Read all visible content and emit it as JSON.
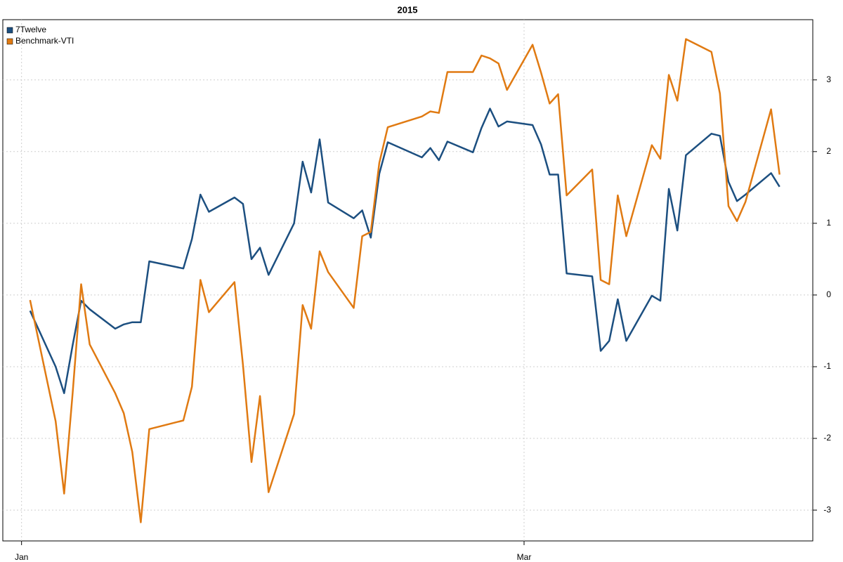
{
  "chart_data": {
    "type": "line",
    "title": "2015",
    "x": [
      1,
      4,
      5,
      6,
      7,
      8,
      11,
      12,
      13,
      14,
      15,
      19,
      20,
      21,
      22,
      25,
      26,
      27,
      28,
      29,
      32,
      33,
      34,
      35,
      36,
      39,
      40,
      41,
      42,
      43,
      47,
      48,
      49,
      50,
      53,
      54,
      55,
      56,
      57,
      60,
      61,
      62,
      63,
      64,
      67,
      68,
      69,
      70,
      71,
      74,
      75,
      76,
      77,
      78,
      81,
      82,
      83,
      84,
      85,
      88,
      89
    ],
    "series": [
      {
        "name": "7Twelve",
        "color": "#1c4f80",
        "values": [
          -0.22,
          -1.0,
          -1.37,
          -0.7,
          -0.08,
          -0.2,
          -0.47,
          -0.41,
          -0.38,
          -0.38,
          0.47,
          0.37,
          0.78,
          1.4,
          1.16,
          1.36,
          1.27,
          0.5,
          0.66,
          0.28,
          1.0,
          1.86,
          1.43,
          2.17,
          1.29,
          1.07,
          1.18,
          0.8,
          1.69,
          2.13,
          1.92,
          2.05,
          1.88,
          2.14,
          1.99,
          2.33,
          2.6,
          2.35,
          2.42,
          2.37,
          2.1,
          1.68,
          1.68,
          0.3,
          0.26,
          -0.78,
          -0.64,
          -0.06,
          -0.64,
          -0.01,
          -0.08,
          1.48,
          0.9,
          1.95,
          2.25,
          2.22,
          1.58,
          1.31,
          1.4,
          1.7,
          1.51
        ]
      },
      {
        "name": "Benchmark-VTI",
        "color": "#e07a12",
        "values": [
          -0.07,
          -1.76,
          -2.77,
          -1.37,
          0.15,
          -0.69,
          -1.37,
          -1.65,
          -2.19,
          -3.17,
          -1.87,
          -1.75,
          -1.28,
          0.21,
          -0.24,
          0.18,
          -0.98,
          -2.33,
          -1.41,
          -2.75,
          -1.66,
          -0.14,
          -0.47,
          0.61,
          0.32,
          -0.18,
          0.82,
          0.88,
          1.84,
          2.34,
          2.49,
          2.56,
          2.54,
          3.11,
          3.11,
          3.34,
          3.3,
          3.23,
          2.86,
          3.49,
          3.1,
          2.67,
          2.8,
          1.39,
          1.75,
          0.21,
          0.15,
          1.39,
          0.82,
          2.09,
          1.9,
          3.07,
          2.71,
          3.57,
          3.39,
          2.81,
          1.24,
          1.03,
          1.3,
          2.59,
          1.68
        ]
      }
    ],
    "xlim": [
      -2.2,
      92.9
    ],
    "xticks": [
      {
        "value": 0,
        "label": "Jan"
      },
      {
        "value": 59,
        "label": "Mar"
      }
    ],
    "ylim": [
      -3.43,
      3.84
    ],
    "yticks": [
      -3,
      -2,
      -1,
      0,
      1,
      2,
      3
    ],
    "grid": true,
    "legend": "topleft"
  }
}
